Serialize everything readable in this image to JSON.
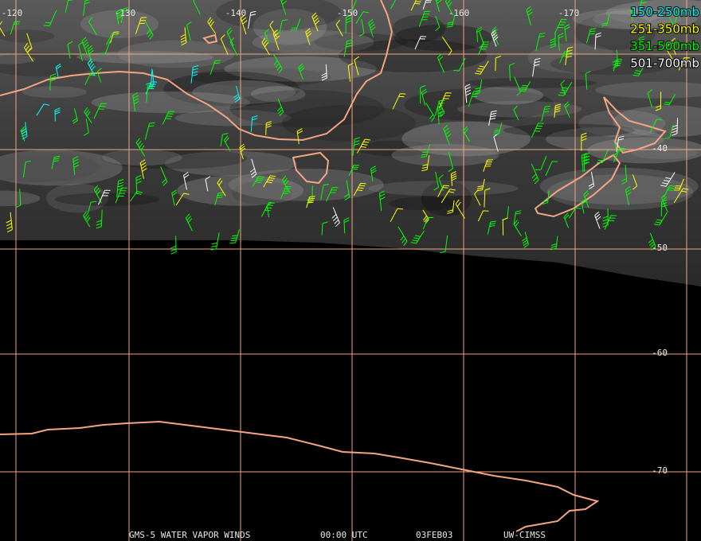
{
  "map": {
    "longitude_labels": [
      "-120",
      "-130",
      "-140",
      "-150",
      "-160",
      "-170"
    ],
    "latitude_labels": [
      "-40",
      "-50",
      "-60",
      "-70"
    ],
    "legend": [
      {
        "label": "150-250mb",
        "color": "#00ffff"
      },
      {
        "label": "251-350mb",
        "color": "#ffff00"
      },
      {
        "label": "351-500mb",
        "color": "#00ff00"
      },
      {
        "label": "501-700mb",
        "color": "#ffffff"
      }
    ]
  },
  "footer": [
    "GMS-5 WATER VAPOR WINDS",
    "00:00 UTC",
    "03FEB03",
    "UW-CIMSS"
  ]
}
